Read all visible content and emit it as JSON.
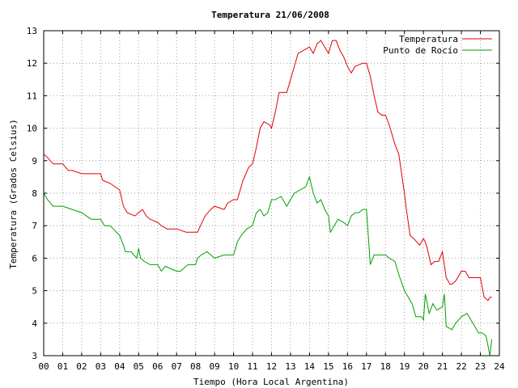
{
  "chart_data": {
    "type": "line",
    "title": "Temperatura 21/06/2008",
    "xlabel": "Tiempo (Hora Local Argentina)",
    "ylabel": "Temperatura (Grados Celsius)",
    "xlim": [
      0,
      24
    ],
    "ylim": [
      3,
      13
    ],
    "xticks": [
      "00",
      "01",
      "02",
      "03",
      "04",
      "05",
      "06",
      "07",
      "08",
      "09",
      "10",
      "11",
      "12",
      "13",
      "14",
      "15",
      "16",
      "17",
      "18",
      "19",
      "20",
      "21",
      "22",
      "23",
      "24"
    ],
    "yticks": [
      "3",
      "4",
      "5",
      "6",
      "7",
      "8",
      "9",
      "10",
      "11",
      "12",
      "13"
    ],
    "grid": true,
    "legend_position": "top-right",
    "series": [
      {
        "name": "Temperatura",
        "color": "#e00000",
        "x": [
          0,
          0.2,
          0.5,
          1.0,
          1.3,
          1.5,
          2.0,
          2.5,
          3.0,
          3.1,
          3.5,
          4.0,
          4.2,
          4.4,
          4.6,
          4.8,
          5.0,
          5.2,
          5.4,
          5.6,
          6.0,
          6.2,
          6.5,
          7.0,
          7.5,
          7.9,
          8.1,
          8.5,
          8.8,
          9.0,
          9.5,
          9.7,
          10.0,
          10.2,
          10.5,
          10.8,
          11.0,
          11.2,
          11.4,
          11.6,
          11.9,
          12.0,
          12.2,
          12.4,
          12.8,
          13.0,
          13.2,
          13.4,
          13.7,
          14.0,
          14.2,
          14.4,
          14.6,
          14.8,
          15.0,
          15.2,
          15.4,
          15.6,
          15.8,
          16.0,
          16.2,
          16.4,
          16.8,
          17.0,
          17.2,
          17.4,
          17.6,
          17.8,
          18.0,
          18.2,
          18.5,
          18.7,
          19.0,
          19.1,
          19.3,
          19.5,
          19.8,
          20.0,
          20.1,
          20.2,
          20.4,
          20.6,
          20.8,
          21.0,
          21.2,
          21.4,
          21.5,
          21.7,
          22.0,
          22.2,
          22.4,
          22.6,
          22.8,
          23.0,
          23.2,
          23.4,
          23.5,
          23.6
        ],
        "y": [
          9.2,
          9.1,
          8.9,
          8.9,
          8.7,
          8.7,
          8.6,
          8.6,
          8.6,
          8.4,
          8.3,
          8.1,
          7.6,
          7.4,
          7.35,
          7.3,
          7.4,
          7.5,
          7.3,
          7.2,
          7.1,
          7.0,
          6.9,
          6.9,
          6.8,
          6.8,
          6.8,
          7.3,
          7.5,
          7.6,
          7.5,
          7.7,
          7.8,
          7.8,
          8.4,
          8.8,
          8.9,
          9.4,
          10.0,
          10.2,
          10.1,
          10.0,
          10.5,
          11.1,
          11.1,
          11.5,
          11.9,
          12.3,
          12.4,
          12.5,
          12.3,
          12.6,
          12.7,
          12.5,
          12.3,
          12.7,
          12.7,
          12.4,
          12.2,
          11.9,
          11.7,
          11.9,
          12.0,
          12.0,
          11.6,
          11.0,
          10.5,
          10.4,
          10.4,
          10.1,
          9.5,
          9.2,
          8.0,
          7.5,
          6.7,
          6.6,
          6.4,
          6.6,
          6.5,
          6.3,
          5.8,
          5.9,
          5.9,
          6.2,
          5.4,
          5.2,
          5.2,
          5.3,
          5.6,
          5.6,
          5.4,
          5.4,
          5.4,
          5.4,
          4.8,
          4.7,
          4.8,
          4.8
        ]
      },
      {
        "name": "Punto de Rocío",
        "color": "#00a000",
        "x": [
          0,
          0.2,
          0.5,
          1.0,
          1.5,
          2.0,
          2.5,
          3.0,
          3.2,
          3.5,
          4.0,
          4.2,
          4.3,
          4.6,
          4.9,
          5.0,
          5.1,
          5.3,
          5.6,
          6.0,
          6.2,
          6.4,
          6.8,
          7.0,
          7.2,
          7.6,
          8.0,
          8.1,
          8.3,
          8.6,
          9.0,
          9.5,
          10.0,
          10.2,
          10.4,
          10.7,
          11.0,
          11.2,
          11.4,
          11.6,
          11.8,
          12.0,
          12.2,
          12.5,
          12.8,
          13.0,
          13.2,
          13.5,
          13.8,
          14.0,
          14.2,
          14.4,
          14.6,
          14.8,
          15.0,
          15.1,
          15.3,
          15.5,
          15.8,
          16.0,
          16.2,
          16.4,
          16.6,
          16.8,
          17.0,
          17.2,
          17.4,
          17.7,
          18.0,
          18.2,
          18.5,
          18.7,
          19.0,
          19.2,
          19.4,
          19.6,
          19.9,
          20.0,
          20.1,
          20.3,
          20.5,
          20.7,
          21.0,
          21.1,
          21.2,
          21.5,
          21.7,
          22.0,
          22.3,
          22.6,
          22.9,
          23.1,
          23.3,
          23.5,
          23.6
        ],
        "y": [
          8.0,
          7.8,
          7.6,
          7.6,
          7.5,
          7.4,
          7.2,
          7.2,
          7.0,
          7.0,
          6.7,
          6.4,
          6.2,
          6.2,
          6.0,
          6.3,
          6.0,
          5.9,
          5.8,
          5.8,
          5.6,
          5.75,
          5.65,
          5.6,
          5.6,
          5.8,
          5.8,
          6.0,
          6.1,
          6.2,
          6.0,
          6.1,
          6.1,
          6.5,
          6.7,
          6.9,
          7.0,
          7.4,
          7.5,
          7.3,
          7.4,
          7.8,
          7.8,
          7.9,
          7.6,
          7.8,
          8.0,
          8.1,
          8.2,
          8.5,
          8.0,
          7.7,
          7.8,
          7.5,
          7.3,
          6.8,
          7.0,
          7.2,
          7.1,
          7.0,
          7.3,
          7.4,
          7.4,
          7.5,
          7.5,
          5.8,
          6.1,
          6.1,
          6.1,
          6.0,
          5.9,
          5.5,
          5.0,
          4.8,
          4.6,
          4.2,
          4.2,
          4.1,
          4.9,
          4.3,
          4.6,
          4.4,
          4.5,
          4.9,
          3.9,
          3.8,
          4.0,
          4.2,
          4.3,
          4.0,
          3.7,
          3.7,
          3.6,
          3.0,
          3.5
        ]
      }
    ]
  }
}
